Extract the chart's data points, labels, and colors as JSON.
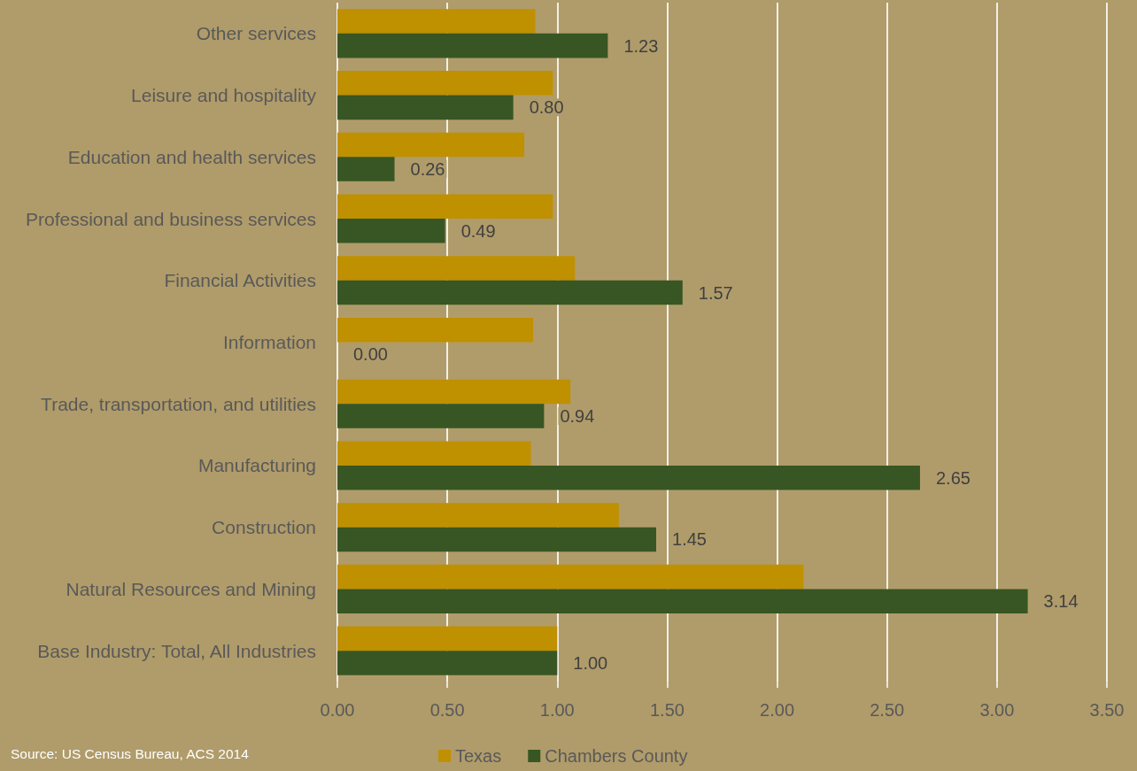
{
  "chart_data": {
    "type": "bar",
    "orientation": "horizontal",
    "categories": [
      "Other services",
      "Leisure and hospitality",
      "Education and health services",
      "Professional and business services",
      "Financial Activities",
      "Information",
      "Trade, transportation, and utilities",
      "Manufacturing",
      "Construction",
      "Natural Resources and Mining",
      "Base Industry: Total, All Industries"
    ],
    "series": [
      {
        "name": "Texas",
        "color": "#bf9000",
        "values": [
          0.9,
          0.98,
          0.85,
          0.98,
          1.08,
          0.89,
          1.06,
          0.88,
          1.28,
          2.12,
          1.0
        ]
      },
      {
        "name": "Chambers County",
        "color": "#375623",
        "values": [
          1.23,
          0.8,
          0.26,
          0.49,
          1.57,
          0.0,
          0.94,
          2.65,
          1.45,
          3.14,
          1.0
        ],
        "value_labels": [
          "1.23",
          "0.80",
          "0.26",
          "0.49",
          "1.57",
          "0.00",
          "0.94",
          "2.65",
          "1.45",
          "3.14",
          "1.00"
        ]
      }
    ],
    "xlim": [
      0,
      3.5
    ],
    "xticks": [
      {
        "value": 0,
        "label": "0.00"
      },
      {
        "value": 0.5,
        "label": "0.50"
      },
      {
        "value": 1,
        "label": "1.00"
      },
      {
        "value": 1.5,
        "label": "1.50"
      },
      {
        "value": 2,
        "label": "2.00"
      },
      {
        "value": 2.5,
        "label": "2.50"
      },
      {
        "value": 3,
        "label": "3.00"
      },
      {
        "value": 3.5,
        "label": "3.50"
      }
    ],
    "grid": "x",
    "legend": "bottom",
    "annotations": [
      "Source: US Census Bureau, ACS 2014"
    ]
  }
}
